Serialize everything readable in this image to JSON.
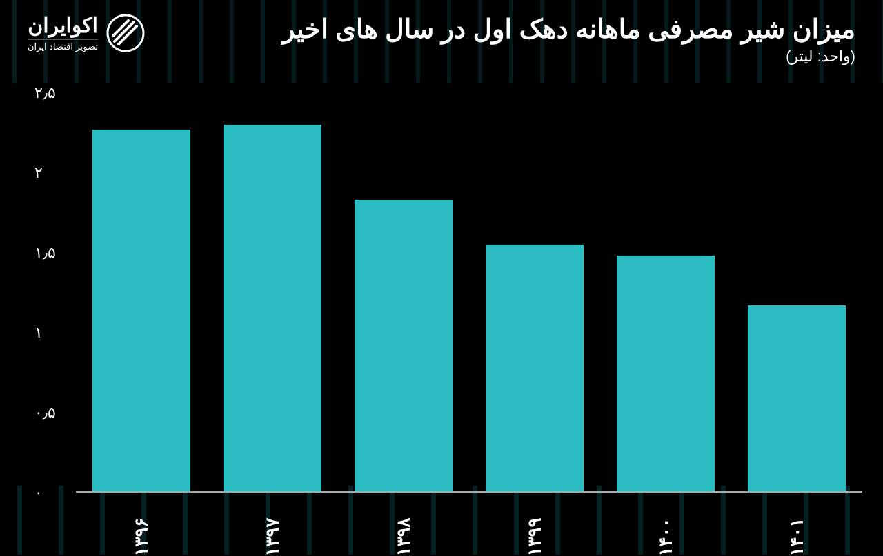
{
  "header": {
    "title": "میزان شیر مصرفی ماهانه دهک اول در سال های اخیر",
    "subtitle": "(واحد: لیتر)",
    "logo_brand": "اکوایران",
    "logo_tagline": "تصویر اقتصاد ایران"
  },
  "chart": {
    "type": "bar",
    "background_color": "#000000",
    "bar_color": "#2bbcc1",
    "text_color": "#ffffff",
    "axis_color": "#aaaaaa",
    "categories": [
      "۱۳۹۶",
      "۱۳۹۷",
      "۱۳۹۸",
      "۱۳۹۹",
      "۱۴۰۰",
      "۱۴۰۱"
    ],
    "values": [
      2.27,
      2.3,
      1.83,
      1.55,
      1.48,
      1.17
    ],
    "ylim": [
      0,
      2.5
    ],
    "ytick_step": 0.5,
    "y_ticks": [
      {
        "value": 0,
        "label": "۰"
      },
      {
        "value": 0.5,
        "label": "۰٫۵"
      },
      {
        "value": 1,
        "label": "۱"
      },
      {
        "value": 1.5,
        "label": "۱٫۵"
      },
      {
        "value": 2,
        "label": "۲"
      },
      {
        "value": 2.5,
        "label": "۲٫۵"
      }
    ],
    "bar_width_ratio": 0.75,
    "title_fontsize": 38,
    "subtitle_fontsize": 22,
    "axis_label_fontsize": 22,
    "x_label_fontsize": 26
  }
}
